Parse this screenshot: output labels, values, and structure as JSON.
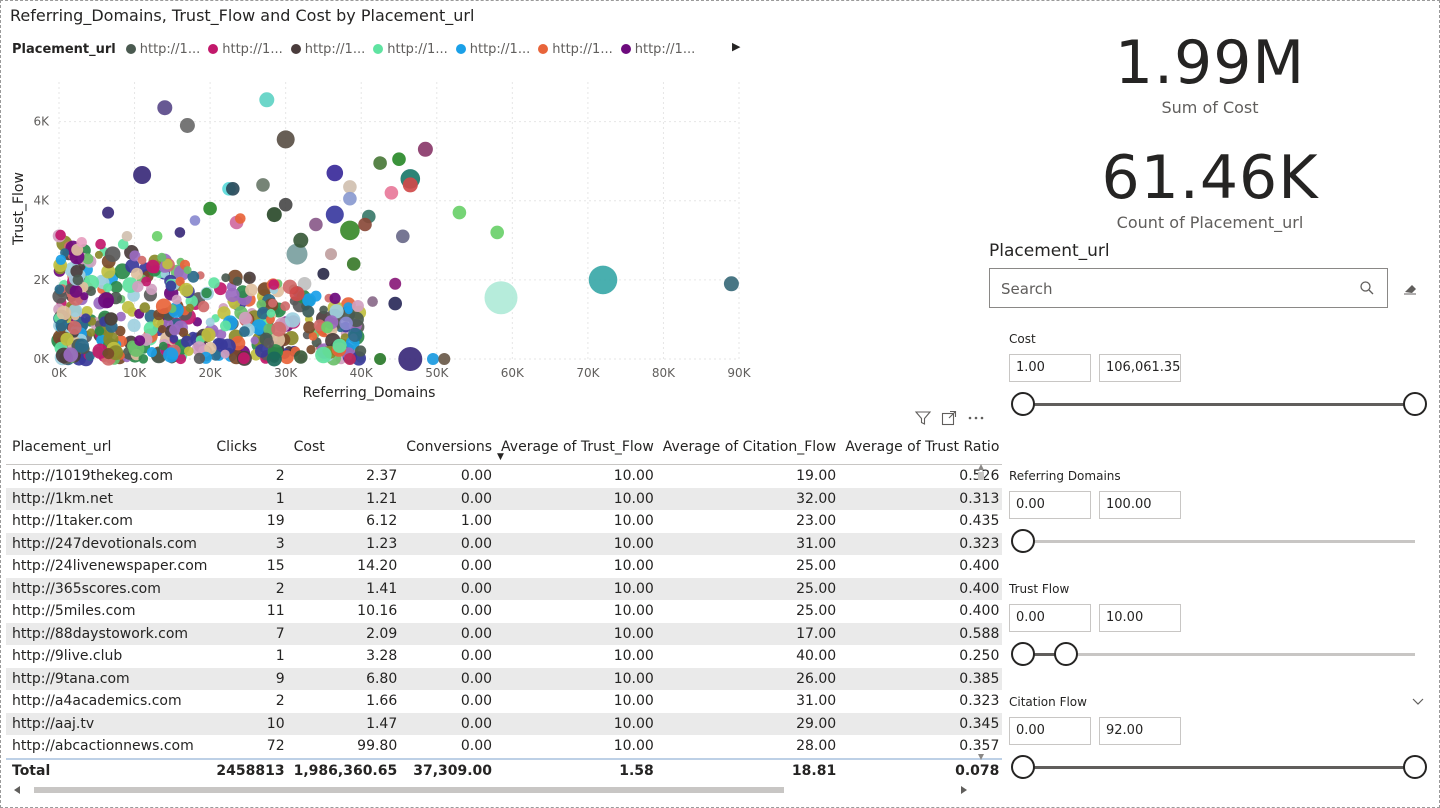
{
  "scatter": {
    "title": "Referring_Domains, Trust_Flow and Cost by Placement_url",
    "legend_title": "Placement_url",
    "legend_items": [
      {
        "label": "http://1...",
        "color": "#4a5a50"
      },
      {
        "label": "http://1...",
        "color": "#c2186b"
      },
      {
        "label": "http://1...",
        "color": "#4a3c3c"
      },
      {
        "label": "http://1...",
        "color": "#5fe3a1"
      },
      {
        "label": "http://1...",
        "color": "#1aa0e8"
      },
      {
        "label": "http://1...",
        "color": "#e8643a"
      },
      {
        "label": "http://1...",
        "color": "#6d0a7d"
      }
    ],
    "legend_next": "▶",
    "chart_data": {
      "type": "scatter",
      "title": "Referring_Domains, Trust_Flow and Cost by Placement_url",
      "xlabel": "Referring_Domains",
      "ylabel": "Trust_Flow",
      "xlim": [
        0,
        90000
      ],
      "ylim": [
        0,
        7000
      ],
      "xticks": [
        "0K",
        "10K",
        "20K",
        "30K",
        "40K",
        "50K",
        "60K",
        "70K",
        "80K",
        "90K"
      ],
      "yticks": [
        "0K",
        "2K",
        "4K",
        "6K"
      ],
      "points": [
        {
          "x": 14000,
          "y": 6350,
          "size": 1,
          "color": "#5a4a8a"
        },
        {
          "x": 27500,
          "y": 6550,
          "size": 1,
          "color": "#5fd3c4"
        },
        {
          "x": 17000,
          "y": 5900,
          "size": 1,
          "color": "#6a6a6a"
        },
        {
          "x": 30000,
          "y": 5550,
          "size": 1.2,
          "color": "#5a5046"
        },
        {
          "x": 48500,
          "y": 5300,
          "size": 1,
          "color": "#8a3a6a"
        },
        {
          "x": 11000,
          "y": 4650,
          "size": 1.2,
          "color": "#3a2a7a"
        },
        {
          "x": 36500,
          "y": 4700,
          "size": 1.1,
          "color": "#3a2a9a"
        },
        {
          "x": 42500,
          "y": 4950,
          "size": 0.9,
          "color": "#4a7a3a"
        },
        {
          "x": 45000,
          "y": 5050,
          "size": 0.9,
          "color": "#2a8a2a"
        },
        {
          "x": 46500,
          "y": 4550,
          "size": 1.3,
          "color": "#1a7a6a"
        },
        {
          "x": 46500,
          "y": 4400,
          "size": 1,
          "color": "#d04a4a"
        },
        {
          "x": 44000,
          "y": 4200,
          "size": 0.9,
          "color": "#e87a9a"
        },
        {
          "x": 38500,
          "y": 4350,
          "size": 0.9,
          "color": "#d0c0b0"
        },
        {
          "x": 27000,
          "y": 4400,
          "size": 0.9,
          "color": "#6a7a6a"
        },
        {
          "x": 22500,
          "y": 4300,
          "size": 0.9,
          "color": "#5adada"
        },
        {
          "x": 23000,
          "y": 4300,
          "size": 0.9,
          "color": "#2a4a5a"
        },
        {
          "x": 53000,
          "y": 3700,
          "size": 0.9,
          "color": "#6ad06a"
        },
        {
          "x": 58000,
          "y": 3200,
          "size": 0.9,
          "color": "#6ad06a"
        },
        {
          "x": 38500,
          "y": 4050,
          "size": 0.9,
          "color": "#8a9ad0"
        },
        {
          "x": 36500,
          "y": 3650,
          "size": 1.2,
          "color": "#3a3aa0"
        },
        {
          "x": 38500,
          "y": 3250,
          "size": 1.3,
          "color": "#3a8a2a"
        },
        {
          "x": 41000,
          "y": 3600,
          "size": 0.9,
          "color": "#3a7a6a"
        },
        {
          "x": 40500,
          "y": 3400,
          "size": 0.9,
          "color": "#8a4a3a"
        },
        {
          "x": 45500,
          "y": 3100,
          "size": 0.9,
          "color": "#6a6a8a"
        },
        {
          "x": 6500,
          "y": 3700,
          "size": 0.8,
          "color": "#3a2a7a"
        },
        {
          "x": 30000,
          "y": 3900,
          "size": 0.9,
          "color": "#4a4a4a"
        },
        {
          "x": 28500,
          "y": 3650,
          "size": 1,
          "color": "#2a4a2a"
        },
        {
          "x": 23500,
          "y": 3450,
          "size": 0.9,
          "color": "#d06aa0"
        },
        {
          "x": 31500,
          "y": 2650,
          "size": 1.4,
          "color": "#7aa0a0"
        },
        {
          "x": 32000,
          "y": 3000,
          "size": 1,
          "color": "#3a5a3a"
        },
        {
          "x": 34000,
          "y": 3400,
          "size": 0.9,
          "color": "#8a5a8a"
        },
        {
          "x": 36000,
          "y": 2650,
          "size": 0.8,
          "color": "#c0a0a0"
        },
        {
          "x": 58500,
          "y": 1550,
          "size": 2.2,
          "color": "#b0ead8"
        },
        {
          "x": 72000,
          "y": 2000,
          "size": 1.9,
          "color": "#3aa8a8"
        },
        {
          "x": 89000,
          "y": 1900,
          "size": 1,
          "color": "#3a6a7a"
        },
        {
          "x": 39000,
          "y": 2400,
          "size": 0.9,
          "color": "#3a7a2a"
        },
        {
          "x": 35000,
          "y": 2150,
          "size": 0.8,
          "color": "#2a2a4a"
        },
        {
          "x": 44500,
          "y": 1900,
          "size": 0.8,
          "color": "#8a1a7a"
        },
        {
          "x": 32500,
          "y": 1900,
          "size": 0.9,
          "color": "#c0c0c0"
        },
        {
          "x": 31500,
          "y": 1650,
          "size": 1,
          "color": "#d04a4a"
        },
        {
          "x": 44500,
          "y": 1400,
          "size": 0.9,
          "color": "#2a2a5a"
        },
        {
          "x": 41500,
          "y": 1450,
          "size": 0.7,
          "color": "#8a6a8a"
        },
        {
          "x": 38000,
          "y": 900,
          "size": 0.9,
          "color": "#8a8ad0"
        },
        {
          "x": 34500,
          "y": 850,
          "size": 0.8,
          "color": "#d06a6a"
        },
        {
          "x": 35500,
          "y": 800,
          "size": 0.8,
          "color": "#6ad06a"
        },
        {
          "x": 33000,
          "y": 1200,
          "size": 0.8,
          "color": "#3a5a5a"
        },
        {
          "x": 46500,
          "y": 0,
          "size": 1.6,
          "color": "#3a2a7a"
        },
        {
          "x": 49500,
          "y": 0,
          "size": 0.8,
          "color": "#1a9ae0"
        },
        {
          "x": 51000,
          "y": 0,
          "size": 0.8,
          "color": "#6a5a4a"
        },
        {
          "x": 42500,
          "y": 0,
          "size": 0.8,
          "color": "#2a7a2a"
        },
        {
          "x": 38500,
          "y": 0,
          "size": 0.8,
          "color": "#c02a5a"
        },
        {
          "x": 35000,
          "y": 100,
          "size": 1.1,
          "color": "#5fe3a1"
        },
        {
          "x": 32000,
          "y": 50,
          "size": 0.9,
          "color": "#3a5a3a"
        },
        {
          "x": 28500,
          "y": 0,
          "size": 1,
          "color": "#1a6a5a"
        },
        {
          "x": 2500,
          "y": 2000,
          "size": 0.7,
          "color": "#4a5a50"
        },
        {
          "x": 3000,
          "y": 2950,
          "size": 0.7,
          "color": "#e8a0c0"
        },
        {
          "x": 5500,
          "y": 2900,
          "size": 0.7,
          "color": "#c2186b"
        },
        {
          "x": 8500,
          "y": 2900,
          "size": 0.7,
          "color": "#5fe3a1"
        },
        {
          "x": 9000,
          "y": 3100,
          "size": 0.7,
          "color": "#d0c0b0"
        },
        {
          "x": 13000,
          "y": 3100,
          "size": 0.7,
          "color": "#6ad06a"
        },
        {
          "x": 16000,
          "y": 3200,
          "size": 0.7,
          "color": "#3a2a7a"
        },
        {
          "x": 18000,
          "y": 3500,
          "size": 0.7,
          "color": "#8a8ad0"
        },
        {
          "x": 20000,
          "y": 3800,
          "size": 0.9,
          "color": "#2a8a2a"
        },
        {
          "x": 24000,
          "y": 3550,
          "size": 0.7,
          "color": "#e8643a"
        }
      ],
      "dense_cluster": {
        "x_range": [
          0,
          40000
        ],
        "y_range": [
          0,
          3200
        ],
        "count": 520
      }
    }
  },
  "cards": [
    {
      "value": "1.99M",
      "label": "Sum of Cost"
    },
    {
      "value": "61.46K",
      "label": "Count of Placement_url"
    }
  ],
  "slicer": {
    "title": "Placement_url",
    "search_placeholder": "Search"
  },
  "ranges": [
    {
      "label": "Cost",
      "min": "1.00",
      "max": "106,061.35",
      "low": 0.0,
      "high": 1.0
    },
    {
      "label": "Referring Domains",
      "min": "0.00",
      "max": "100.00",
      "low": 0.0,
      "high": null
    },
    {
      "label": "Trust Flow",
      "min": "0.00",
      "max": "10.00",
      "low": 0.0,
      "high": 0.11
    },
    {
      "label": "Citation Flow",
      "min": "0.00",
      "max": "92.00",
      "low": 0.0,
      "high": 1.0
    }
  ],
  "table": {
    "columns": [
      "Placement_url",
      "Clicks",
      "Cost",
      "Conversions",
      "Average of Trust_Flow",
      "Average of Citation_Flow",
      "Average of Trust Ratio"
    ],
    "sort_indicator": "▼",
    "rows": [
      [
        "http://1019thekeg.com",
        "2",
        "2.37",
        "0.00",
        "10.00",
        "19.00",
        "0.526"
      ],
      [
        "http://1km.net",
        "1",
        "1.21",
        "0.00",
        "10.00",
        "32.00",
        "0.313"
      ],
      [
        "http://1taker.com",
        "19",
        "6.12",
        "1.00",
        "10.00",
        "23.00",
        "0.435"
      ],
      [
        "http://247devotionals.com",
        "3",
        "1.23",
        "0.00",
        "10.00",
        "31.00",
        "0.323"
      ],
      [
        "http://24livenewspaper.com",
        "15",
        "14.20",
        "0.00",
        "10.00",
        "25.00",
        "0.400"
      ],
      [
        "http://365scores.com",
        "2",
        "1.41",
        "0.00",
        "10.00",
        "25.00",
        "0.400"
      ],
      [
        "http://5miles.com",
        "11",
        "10.16",
        "0.00",
        "10.00",
        "25.00",
        "0.400"
      ],
      [
        "http://88daystowork.com",
        "7",
        "2.09",
        "0.00",
        "10.00",
        "17.00",
        "0.588"
      ],
      [
        "http://9live.club",
        "1",
        "3.28",
        "0.00",
        "10.00",
        "40.00",
        "0.250"
      ],
      [
        "http://9tana.com",
        "9",
        "6.80",
        "0.00",
        "10.00",
        "26.00",
        "0.385"
      ],
      [
        "http://a4academics.com",
        "2",
        "1.66",
        "0.00",
        "10.00",
        "31.00",
        "0.323"
      ],
      [
        "http://aaj.tv",
        "10",
        "1.47",
        "0.00",
        "10.00",
        "29.00",
        "0.345"
      ],
      [
        "http://abcactionnews.com",
        "72",
        "99.80",
        "0.00",
        "10.00",
        "28.00",
        "0.357"
      ]
    ],
    "total": [
      "Total",
      "2458813",
      "1,986,360.65",
      "37,309.00",
      "1.58",
      "18.81",
      "0.078"
    ]
  },
  "colors": {
    "accent": "#118dff",
    "text": "#252423",
    "muted": "#605e5c"
  }
}
